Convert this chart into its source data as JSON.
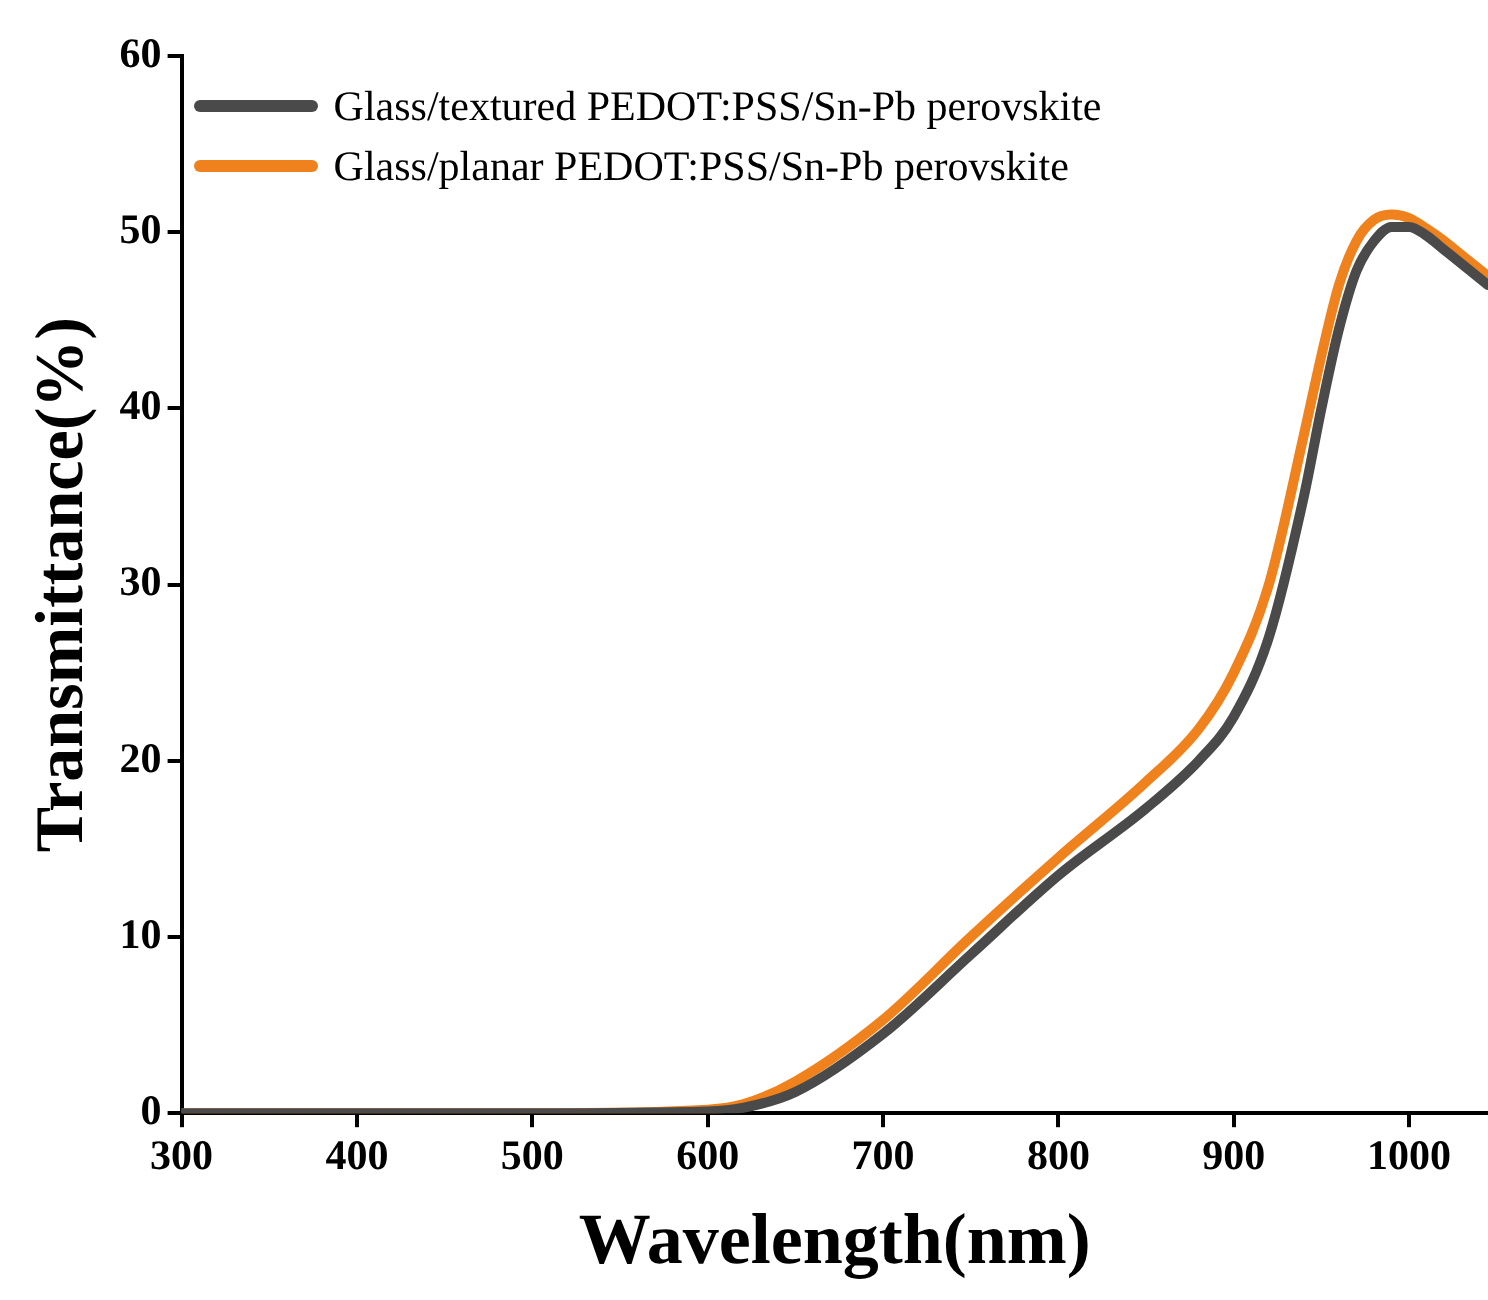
{
  "chart_data": {
    "type": "line",
    "xlabel": "Wavelength(nm)",
    "ylabel": "Transmittance(%)",
    "xlim": [
      300,
      1045
    ],
    "xticks": [
      300,
      400,
      500,
      600,
      700,
      800,
      900,
      1000
    ],
    "ylim": [
      0,
      60
    ],
    "yticks": [
      0,
      10,
      20,
      30,
      40,
      50,
      60
    ],
    "grid": false,
    "legend": "top left",
    "marker": "none",
    "line_style": "solid",
    "series": [
      {
        "name": "Glass/textured PEDOT:PSS/Sn-Pb perovskite",
        "color": "#4a4a4a",
        "x": [
          300,
          400,
          500,
          600,
          620,
          650,
          700,
          750,
          800,
          850,
          880,
          900,
          920,
          940,
          950,
          960,
          970,
          980,
          990,
          1000,
          1010,
          1020,
          1030,
          1045
        ],
        "values": [
          0,
          0,
          0,
          0.1,
          0.3,
          1.2,
          4.5,
          9,
          13.5,
          17.3,
          20,
          22.5,
          27,
          35,
          40,
          44.5,
          47.8,
          49.5,
          50.3,
          50.3,
          49.8,
          49,
          48.2,
          47
        ]
      },
      {
        "name": "Glass/planar PEDOT:PSS/Sn-Pb perovskite",
        "color": "#f0821e",
        "x": [
          300,
          400,
          500,
          600,
          620,
          650,
          700,
          750,
          800,
          850,
          880,
          900,
          920,
          940,
          950,
          960,
          970,
          980,
          990,
          1000,
          1010,
          1020,
          1030,
          1045
        ],
        "values": [
          0,
          0,
          0,
          0.2,
          0.5,
          1.8,
          5.3,
          10,
          14.5,
          18.8,
          21.8,
          25,
          30,
          38.5,
          43,
          47,
          49.5,
          50.7,
          51,
          50.8,
          50.2,
          49.5,
          48.7,
          47.5
        ]
      }
    ]
  }
}
